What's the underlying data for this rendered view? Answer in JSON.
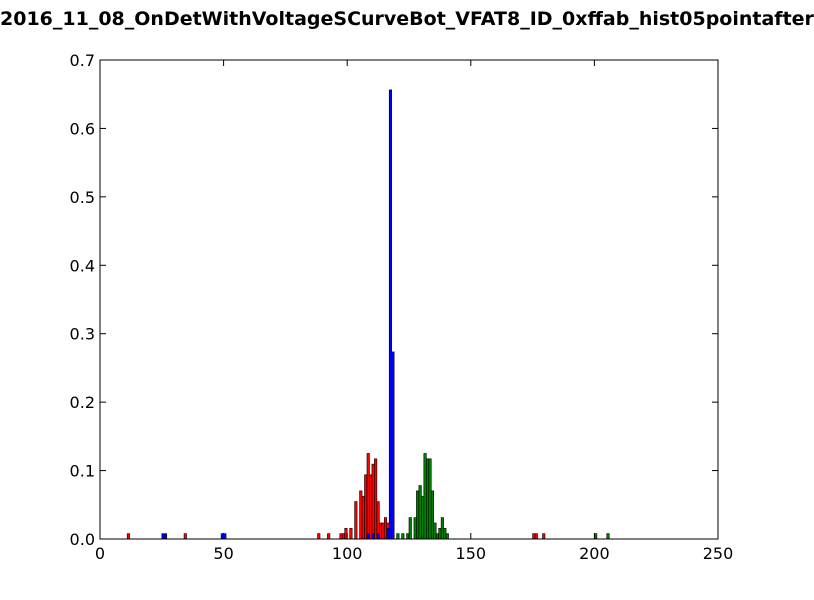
{
  "chart_data": {
    "type": "bar",
    "title": "2016_11_08_OnDetWithVoltageSCurveBot_VFAT8_ID_0xffab_hist05pointafter",
    "xlabel": "",
    "ylabel": "",
    "xlim": [
      0,
      250
    ],
    "ylim": [
      0,
      0.7
    ],
    "xticks": [
      "0",
      "50",
      "100",
      "150",
      "200",
      "250"
    ],
    "yticks": [
      "0.0",
      "0.1",
      "0.2",
      "0.3",
      "0.4",
      "0.5",
      "0.6",
      "0.7"
    ],
    "bin_width": 1,
    "series": [
      {
        "color": "#ff0000",
        "points": [
          [
            11,
            0.0078
          ],
          [
            34,
            0.0078
          ],
          [
            88,
            0.0078
          ],
          [
            92,
            0.0078
          ],
          [
            97,
            0.0078
          ],
          [
            98,
            0.0078
          ],
          [
            99,
            0.0156
          ],
          [
            101,
            0.0156
          ],
          [
            103,
            0.0547
          ],
          [
            105,
            0.0703
          ],
          [
            106,
            0.0625
          ],
          [
            107,
            0.0938
          ],
          [
            108,
            0.125
          ],
          [
            109,
            0.0938
          ],
          [
            110,
            0.1094
          ],
          [
            111,
            0.1172
          ],
          [
            112,
            0.0547
          ],
          [
            113,
            0.0234
          ],
          [
            114,
            0.0234
          ],
          [
            115,
            0.0313
          ],
          [
            116,
            0.0234
          ],
          [
            175,
            0.0078
          ],
          [
            176,
            0.0078
          ],
          [
            179,
            0.0078
          ]
        ]
      },
      {
        "color": "#0000ff",
        "points": [
          [
            25,
            0.0078
          ],
          [
            26,
            0.0078
          ],
          [
            49,
            0.0078
          ],
          [
            50,
            0.0078
          ],
          [
            108,
            0.0078
          ],
          [
            110,
            0.0078
          ],
          [
            112,
            0.0078
          ],
          [
            116,
            0.0156
          ],
          [
            117,
            0.6563
          ],
          [
            118,
            0.2734
          ]
        ]
      },
      {
        "color": "#008000",
        "points": [
          [
            120,
            0.0078
          ],
          [
            122,
            0.0078
          ],
          [
            124,
            0.0078
          ],
          [
            125,
            0.0313
          ],
          [
            127,
            0.0313
          ],
          [
            128,
            0.0703
          ],
          [
            129,
            0.0781
          ],
          [
            130,
            0.0625
          ],
          [
            131,
            0.125
          ],
          [
            132,
            0.1172
          ],
          [
            133,
            0.1172
          ],
          [
            134,
            0.0703
          ],
          [
            135,
            0.0234
          ],
          [
            136,
            0.0078
          ],
          [
            137,
            0.0156
          ],
          [
            138,
            0.0313
          ],
          [
            139,
            0.0156
          ],
          [
            140,
            0.0078
          ],
          [
            200,
            0.0078
          ],
          [
            205,
            0.0078
          ]
        ]
      }
    ]
  }
}
